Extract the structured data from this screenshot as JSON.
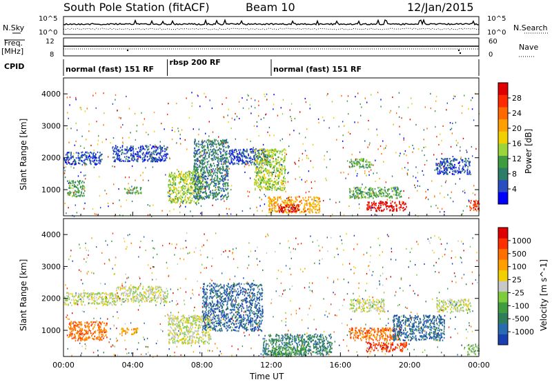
{
  "header": {
    "station": "South Pole Station (fitACF)",
    "beam": "Beam 10",
    "date": "12/Jan/2015"
  },
  "param_panels": {
    "nsky_label": "N.Sky",
    "nsearch_label": "N.Search",
    "noise_ticks_left": [
      "10^5",
      "10^0"
    ],
    "noise_ticks_right": [
      "10^5",
      "10^0"
    ],
    "freq_label_top": "Freq.",
    "freq_label_unit": "[MHz]",
    "freq_ticks": [
      "12",
      "8"
    ],
    "nave_label": "Nave",
    "nave_ticks": [
      "60",
      "0"
    ],
    "cpid_label": "CPID"
  },
  "cpid_segments": [
    {
      "label": "normal (fast) 151 RF",
      "start_h": 0,
      "end_h": 6
    },
    {
      "label": "rbsp 200 RF",
      "start_h": 6,
      "end_h": 12
    },
    {
      "label": "normal (fast) 151 RF",
      "start_h": 12,
      "end_h": 24
    }
  ],
  "chart_data": [
    {
      "type": "heatmap",
      "title": "",
      "xlabel": "",
      "ylabel": "Slant Range [km]",
      "x_unit": "UT hours",
      "xlim": [
        0,
        24
      ],
      "ylim": [
        180,
        4500
      ],
      "yticks": [
        1000,
        2000,
        3000,
        4000
      ],
      "colorbar_label": "Power [dB]",
      "colorbar_ticks": [
        "4",
        "8",
        "12",
        "16",
        "20",
        "24",
        "28"
      ],
      "colorbar_colors": [
        "#0000ff",
        "#2a4ec2",
        "#2b7d66",
        "#3f9c3f",
        "#9cd43c",
        "#f0d000",
        "#ffa000",
        "#ff6a00",
        "#ff2a00",
        "#e00000"
      ],
      "echo_regions": [
        {
          "t0": 0.0,
          "t1": 2.2,
          "r0": 1800,
          "r1": 2200,
          "level": 1
        },
        {
          "t0": 0.2,
          "t1": 1.2,
          "r0": 800,
          "r1": 1300,
          "level": 3
        },
        {
          "t0": 2.8,
          "t1": 6.0,
          "r0": 1900,
          "r1": 2400,
          "level": 1
        },
        {
          "t0": 3.5,
          "t1": 4.5,
          "r0": 900,
          "r1": 1100,
          "level": 3
        },
        {
          "t0": 6.0,
          "t1": 8.0,
          "r0": 600,
          "r1": 1600,
          "level": 4
        },
        {
          "t0": 7.5,
          "t1": 9.5,
          "r0": 700,
          "r1": 2600,
          "level": 2
        },
        {
          "t0": 9.5,
          "t1": 11.8,
          "r0": 1800,
          "r1": 2300,
          "level": 1
        },
        {
          "t0": 11.0,
          "t1": 12.8,
          "r0": 1000,
          "r1": 2300,
          "level": 4
        },
        {
          "t0": 11.8,
          "t1": 14.8,
          "r0": 300,
          "r1": 800,
          "level": 6
        },
        {
          "t0": 12.4,
          "t1": 13.6,
          "r0": 300,
          "r1": 550,
          "level": 9
        },
        {
          "t0": 16.5,
          "t1": 17.8,
          "r0": 1700,
          "r1": 2000,
          "level": 3
        },
        {
          "t0": 16.5,
          "t1": 19.5,
          "r0": 750,
          "r1": 1100,
          "level": 3
        },
        {
          "t0": 17.5,
          "t1": 19.8,
          "r0": 350,
          "r1": 650,
          "level": 9
        },
        {
          "t0": 21.5,
          "t1": 23.5,
          "r0": 1500,
          "r1": 2000,
          "level": 1
        },
        {
          "t0": 23.4,
          "t1": 24.0,
          "r0": 350,
          "r1": 700,
          "level": 8
        }
      ]
    },
    {
      "type": "heatmap",
      "title": "",
      "xlabel": "Time UT",
      "ylabel": "Slant Range [km]",
      "x_unit": "UT hours",
      "xlim": [
        0,
        24
      ],
      "ylim": [
        180,
        4500
      ],
      "xticks": [
        "00:00",
        "04:00",
        "08:00",
        "12:00",
        "16:00",
        "20:00",
        "00:00"
      ],
      "yticks": [
        1000,
        2000,
        3000,
        4000
      ],
      "colorbar_label": "Velocity [m s^-1]",
      "colorbar_ticks": [
        "1000",
        "500",
        "100",
        "25",
        "-25",
        "-100",
        "-500",
        "-1000"
      ],
      "colorbar_colors": [
        "#1a3fb0",
        "#2a6ab0",
        "#2f7d5a",
        "#3f9c3f",
        "#7ccc3c",
        "#c8c8c8",
        "#f0d000",
        "#ffa000",
        "#ff7000",
        "#ff3000",
        "#e00000"
      ],
      "echo_regions": [
        {
          "t0": 0.0,
          "t1": 3.0,
          "r0": 1800,
          "r1": 2200,
          "level": 5
        },
        {
          "t0": 0.3,
          "t1": 2.5,
          "r0": 700,
          "r1": 1300,
          "level": 8
        },
        {
          "t0": 3.0,
          "t1": 6.0,
          "r0": 1900,
          "r1": 2400,
          "level": 5
        },
        {
          "t0": 3.2,
          "t1": 4.3,
          "r0": 900,
          "r1": 1100,
          "level": 7
        },
        {
          "t0": 6.0,
          "t1": 8.5,
          "r0": 600,
          "r1": 1500,
          "level": 5
        },
        {
          "t0": 8.0,
          "t1": 11.5,
          "r0": 1000,
          "r1": 2500,
          "level": 1
        },
        {
          "t0": 11.5,
          "t1": 15.5,
          "r0": 250,
          "r1": 900,
          "level": 2
        },
        {
          "t0": 12.0,
          "t1": 14.0,
          "r0": 200,
          "r1": 500,
          "level": 3
        },
        {
          "t0": 16.5,
          "t1": 19.5,
          "r0": 700,
          "r1": 1100,
          "level": 8
        },
        {
          "t0": 17.5,
          "t1": 19.8,
          "r0": 350,
          "r1": 650,
          "level": 9
        },
        {
          "t0": 16.5,
          "t1": 18.5,
          "r0": 1600,
          "r1": 2000,
          "level": 5
        },
        {
          "t0": 19.0,
          "t1": 22.0,
          "r0": 700,
          "r1": 1500,
          "level": 1
        },
        {
          "t0": 21.5,
          "t1": 23.5,
          "r0": 1600,
          "r1": 2000,
          "level": 5
        },
        {
          "t0": 23.3,
          "t1": 24.0,
          "r0": 250,
          "r1": 600,
          "level": 4
        }
      ]
    }
  ]
}
